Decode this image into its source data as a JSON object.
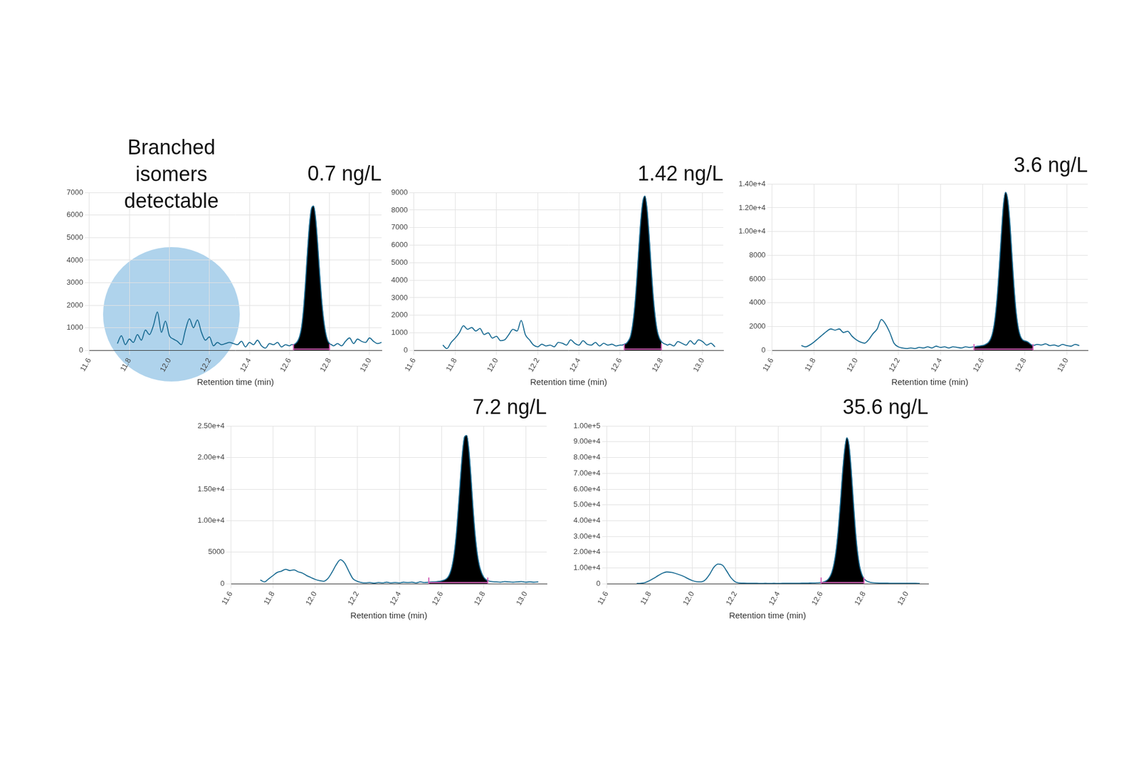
{
  "chart_data": [
    {
      "type": "line",
      "title": "0.7 ng/L",
      "xlabel": "Retention time (min)",
      "annotation": "Branched isomers detectable",
      "x": [
        11.74,
        11.76,
        11.78,
        11.8,
        11.82,
        11.84,
        11.86,
        11.88,
        11.9,
        11.92,
        11.94,
        11.96,
        11.98,
        12.0,
        12.02,
        12.04,
        12.06,
        12.08,
        12.1,
        12.12,
        12.14,
        12.16,
        12.18,
        12.2,
        12.22,
        12.24,
        12.26,
        12.28,
        12.3,
        12.32,
        12.34,
        12.36,
        12.38,
        12.4,
        12.42,
        12.44,
        12.46,
        12.48,
        12.5,
        12.52,
        12.54,
        12.56,
        12.58,
        12.6,
        12.61,
        12.62,
        12.63,
        12.64,
        12.65,
        12.66,
        12.67,
        12.68,
        12.69,
        12.7,
        12.71,
        12.72,
        12.73,
        12.74,
        12.75,
        12.76,
        12.77,
        12.78,
        12.79,
        12.8,
        12.81,
        12.82,
        12.83,
        12.84,
        12.86,
        12.88,
        12.9,
        12.92,
        12.94,
        12.96,
        12.98,
        13.0,
        13.02,
        13.04,
        13.06
      ],
      "series": [
        {
          "color": "#1b6c93",
          "values": [
            300,
            650,
            250,
            500,
            350,
            700,
            450,
            900,
            700,
            1100,
            1700,
            800,
            1300,
            650,
            500,
            400,
            250,
            900,
            1400,
            1000,
            1350,
            800,
            450,
            600,
            200,
            350,
            250,
            300,
            350,
            300,
            250,
            400,
            150,
            350,
            250,
            450,
            200,
            100,
            300,
            250,
            350,
            150,
            250,
            200,
            250,
            250,
            300,
            400,
            600,
            1000,
            1800,
            3000,
            4400,
            5600,
            6300,
            6400,
            5900,
            4800,
            3500,
            2300,
            1400,
            800,
            450,
            300,
            250,
            200,
            250,
            300,
            200,
            400,
            550,
            300,
            500,
            400,
            350,
            550,
            400,
            300,
            350
          ]
        }
      ],
      "peak_window": [
        12.62,
        12.8
      ],
      "xlim": [
        11.6,
        13.06
      ],
      "ylim": [
        0,
        7000
      ],
      "xticks": [
        11.6,
        11.8,
        {
          "value": 12,
          "label": "12.0"
        },
        12.2,
        12.4,
        12.6,
        12.8,
        {
          "value": 13,
          "label": "13.0"
        }
      ],
      "yticks": [
        0,
        1000,
        2000,
        3000,
        4000,
        5000,
        6000,
        7000
      ],
      "grid": true
    },
    {
      "type": "line",
      "title": "1.42 ng/L",
      "xlabel": "Retention time (min)",
      "x": [
        11.74,
        11.76,
        11.78,
        11.8,
        11.82,
        11.84,
        11.86,
        11.88,
        11.9,
        11.92,
        11.94,
        11.96,
        11.98,
        12.0,
        12.02,
        12.04,
        12.06,
        12.08,
        12.1,
        12.12,
        12.14,
        12.16,
        12.18,
        12.2,
        12.22,
        12.24,
        12.26,
        12.28,
        12.3,
        12.32,
        12.34,
        12.36,
        12.38,
        12.4,
        12.42,
        12.44,
        12.46,
        12.48,
        12.5,
        12.52,
        12.54,
        12.56,
        12.58,
        12.6,
        12.61,
        12.62,
        12.63,
        12.64,
        12.65,
        12.66,
        12.67,
        12.68,
        12.69,
        12.7,
        12.71,
        12.72,
        12.73,
        12.74,
        12.75,
        12.76,
        12.77,
        12.78,
        12.79,
        12.8,
        12.81,
        12.82,
        12.83,
        12.84,
        12.86,
        12.88,
        12.9,
        12.92,
        12.94,
        12.96,
        12.98,
        13.0,
        13.02,
        13.04,
        13.06
      ],
      "series": [
        {
          "color": "#1b6c93",
          "values": [
            300,
            100,
            450,
            700,
            1000,
            1400,
            1200,
            1300,
            1100,
            1250,
            900,
            1000,
            700,
            800,
            550,
            600,
            900,
            1200,
            1100,
            1700,
            900,
            600,
            300,
            200,
            350,
            250,
            300,
            200,
            450,
            400,
            300,
            600,
            400,
            300,
            550,
            350,
            300,
            450,
            250,
            400,
            300,
            350,
            250,
            300,
            300,
            350,
            400,
            550,
            800,
            1400,
            2400,
            3900,
            5700,
            7400,
            8500,
            8800,
            8100,
            6600,
            4800,
            3100,
            1900,
            1100,
            700,
            500,
            400,
            350,
            300,
            350,
            250,
            500,
            400,
            300,
            550,
            350,
            600,
            500,
            300,
            400,
            200
          ]
        }
      ],
      "peak_window": [
        12.62,
        12.8
      ],
      "xlim": [
        11.6,
        13.1
      ],
      "ylim": [
        0,
        9000
      ],
      "xticks": [
        11.6,
        11.8,
        {
          "value": 12,
          "label": "12.0"
        },
        12.2,
        12.4,
        12.6,
        12.8,
        {
          "value": 13,
          "label": "13.0"
        }
      ],
      "yticks": [
        0,
        1000,
        2000,
        3000,
        4000,
        5000,
        6000,
        7000,
        8000,
        9000
      ],
      "grid": true
    },
    {
      "type": "line",
      "title": "3.6 ng/L",
      "xlabel": "Retention time (min)",
      "x": [
        11.74,
        11.76,
        11.78,
        11.8,
        11.82,
        11.84,
        11.86,
        11.88,
        11.9,
        11.92,
        11.94,
        11.96,
        11.98,
        12.0,
        12.02,
        12.04,
        12.06,
        12.08,
        12.1,
        12.12,
        12.14,
        12.16,
        12.18,
        12.2,
        12.22,
        12.24,
        12.26,
        12.28,
        12.3,
        12.32,
        12.34,
        12.36,
        12.38,
        12.4,
        12.42,
        12.44,
        12.46,
        12.48,
        12.5,
        12.52,
        12.54,
        12.56,
        12.58,
        12.6,
        12.61,
        12.62,
        12.63,
        12.64,
        12.65,
        12.66,
        12.67,
        12.68,
        12.69,
        12.7,
        12.71,
        12.72,
        12.73,
        12.74,
        12.75,
        12.76,
        12.77,
        12.78,
        12.79,
        12.8,
        12.81,
        12.82,
        12.83,
        12.84,
        12.86,
        12.88,
        12.9,
        12.92,
        12.94,
        12.96,
        12.98,
        13.0,
        13.02,
        13.04,
        13.06
      ],
      "series": [
        {
          "color": "#1b6c93",
          "values": [
            400,
            300,
            450,
            700,
            1000,
            1300,
            1600,
            1800,
            1700,
            1800,
            1500,
            1600,
            1200,
            900,
            700,
            600,
            900,
            1400,
            1800,
            2600,
            2200,
            1500,
            600,
            300,
            200,
            150,
            200,
            150,
            250,
            200,
            300,
            200,
            350,
            250,
            300,
            200,
            300,
            250,
            200,
            300,
            250,
            300,
            350,
            400,
            450,
            550,
            700,
            1000,
            1600,
            2700,
            4500,
            7000,
            9800,
            12300,
            13300,
            12700,
            10800,
            8000,
            5300,
            3200,
            1900,
            1200,
            900,
            800,
            750,
            650,
            500,
            400,
            500,
            450,
            550,
            400,
            450,
            350,
            500,
            400,
            350,
            500,
            400
          ]
        }
      ],
      "peak_window": [
        12.56,
        12.84
      ],
      "xlim": [
        11.6,
        13.1
      ],
      "ylim": [
        0,
        14000
      ],
      "xticks": [
        11.6,
        11.8,
        {
          "value": 12,
          "label": "12.0"
        },
        12.2,
        12.4,
        12.6,
        12.8,
        {
          "value": 13,
          "label": "13.0"
        }
      ],
      "yticks": [
        0,
        2000,
        4000,
        6000,
        8000,
        {
          "value": 10000,
          "label": "1.00e+4"
        },
        {
          "value": 12000,
          "label": "1.20e+4"
        },
        {
          "value": 14000,
          "label": "1.40e+4"
        }
      ],
      "grid": true
    },
    {
      "type": "line",
      "title": "7.2 ng/L",
      "xlabel": "Retention time (min)",
      "x": [
        11.74,
        11.76,
        11.78,
        11.8,
        11.82,
        11.84,
        11.86,
        11.88,
        11.9,
        11.92,
        11.94,
        11.96,
        11.98,
        12.0,
        12.02,
        12.04,
        12.06,
        12.08,
        12.1,
        12.12,
        12.14,
        12.16,
        12.18,
        12.2,
        12.22,
        12.24,
        12.26,
        12.28,
        12.3,
        12.32,
        12.34,
        12.36,
        12.38,
        12.4,
        12.42,
        12.44,
        12.46,
        12.48,
        12.5,
        12.52,
        12.54,
        12.56,
        12.58,
        12.6,
        12.61,
        12.62,
        12.63,
        12.64,
        12.65,
        12.66,
        12.67,
        12.68,
        12.69,
        12.7,
        12.71,
        12.72,
        12.73,
        12.74,
        12.75,
        12.76,
        12.77,
        12.78,
        12.79,
        12.8,
        12.81,
        12.82,
        12.83,
        12.84,
        12.86,
        12.88,
        12.9,
        12.92,
        12.94,
        12.96,
        12.98,
        13.0,
        13.02,
        13.04,
        13.06
      ],
      "series": [
        {
          "color": "#1b6c93",
          "values": [
            600,
            300,
            800,
            1300,
            1800,
            2000,
            2300,
            2100,
            2200,
            1900,
            1700,
            1300,
            1000,
            700,
            500,
            400,
            800,
            1800,
            3000,
            3800,
            3300,
            2000,
            800,
            400,
            200,
            150,
            200,
            100,
            200,
            150,
            250,
            150,
            200,
            150,
            250,
            200,
            250,
            150,
            300,
            200,
            250,
            300,
            350,
            450,
            550,
            700,
            1000,
            1600,
            2700,
            4600,
            7600,
            11800,
            16500,
            20800,
            23300,
            23500,
            21300,
            17000,
            12000,
            7800,
            4800,
            2900,
            1800,
            1100,
            700,
            500,
            400,
            350,
            300,
            250,
            350,
            300,
            250,
            300,
            350,
            250,
            300,
            250,
            300
          ]
        }
      ],
      "peak_window": [
        12.54,
        12.82
      ],
      "xlim": [
        11.6,
        13.1
      ],
      "ylim": [
        0,
        25000
      ],
      "xticks": [
        11.6,
        11.8,
        {
          "value": 12,
          "label": "12.0"
        },
        12.2,
        12.4,
        12.6,
        12.8,
        {
          "value": 13,
          "label": "13.0"
        }
      ],
      "yticks": [
        0,
        5000,
        {
          "value": 10000,
          "label": "1.00e+4"
        },
        {
          "value": 15000,
          "label": "1.50e+4"
        },
        {
          "value": 20000,
          "label": "2.00e+4"
        },
        {
          "value": 25000,
          "label": "2.50e+4"
        }
      ],
      "grid": true
    },
    {
      "type": "line",
      "title": "35.6 ng/L",
      "xlabel": "Retention time (min)",
      "x": [
        11.74,
        11.76,
        11.78,
        11.8,
        11.82,
        11.84,
        11.86,
        11.88,
        11.9,
        11.92,
        11.94,
        11.96,
        11.98,
        12.0,
        12.02,
        12.04,
        12.06,
        12.08,
        12.1,
        12.12,
        12.14,
        12.16,
        12.18,
        12.2,
        12.22,
        12.24,
        12.26,
        12.28,
        12.3,
        12.32,
        12.34,
        12.36,
        12.38,
        12.4,
        12.42,
        12.44,
        12.46,
        12.48,
        12.5,
        12.52,
        12.54,
        12.56,
        12.58,
        12.6,
        12.61,
        12.62,
        12.63,
        12.64,
        12.65,
        12.66,
        12.67,
        12.68,
        12.69,
        12.7,
        12.71,
        12.72,
        12.73,
        12.74,
        12.75,
        12.76,
        12.77,
        12.78,
        12.79,
        12.8,
        12.81,
        12.82,
        12.83,
        12.84,
        12.86,
        12.88,
        12.9,
        12.92,
        12.94,
        12.96,
        12.98,
        13.0,
        13.02,
        13.04,
        13.06
      ],
      "series": [
        {
          "color": "#1b6c93",
          "values": [
            200,
            300,
            800,
            2000,
            3500,
            5200,
            6700,
            7500,
            7300,
            6600,
            5700,
            4600,
            3200,
            2000,
            1300,
            1200,
            2500,
            6000,
            10500,
            12500,
            11800,
            8000,
            3800,
            1200,
            500,
            400,
            350,
            300,
            300,
            250,
            300,
            250,
            300,
            250,
            300,
            300,
            350,
            300,
            350,
            400,
            450,
            500,
            600,
            800,
            1100,
            1600,
            2500,
            4200,
            7200,
            12500,
            21000,
            34000,
            51000,
            70000,
            85000,
            92500,
            88000,
            73000,
            53000,
            34000,
            20000,
            11000,
            6000,
            3300,
            2000,
            1300,
            900,
            700,
            500,
            400,
            400,
            350,
            350,
            300,
            300,
            350,
            300,
            300,
            250
          ]
        }
      ],
      "peak_window": [
        12.6,
        12.8
      ],
      "xlim": [
        11.6,
        13.1
      ],
      "ylim": [
        0,
        100000
      ],
      "xticks": [
        11.6,
        11.8,
        {
          "value": 12,
          "label": "12.0"
        },
        12.2,
        12.4,
        12.6,
        12.8,
        {
          "value": 13,
          "label": "13.0"
        }
      ],
      "yticks": [
        0,
        {
          "value": 10000,
          "label": "1.00e+4"
        },
        {
          "value": 20000,
          "label": "2.00e+4"
        },
        {
          "value": 30000,
          "label": "3.00e+4"
        },
        {
          "value": 40000,
          "label": "4.00e+4"
        },
        {
          "value": 50000,
          "label": "5.00e+4"
        },
        {
          "value": 60000,
          "label": "6.00e+4"
        },
        {
          "value": 70000,
          "label": "7.00e+4"
        },
        {
          "value": 80000,
          "label": "8.00e+4"
        },
        {
          "value": 90000,
          "label": "9.00e+4"
        },
        {
          "value": 100000,
          "label": "1.00e+5"
        }
      ],
      "grid": true
    }
  ]
}
